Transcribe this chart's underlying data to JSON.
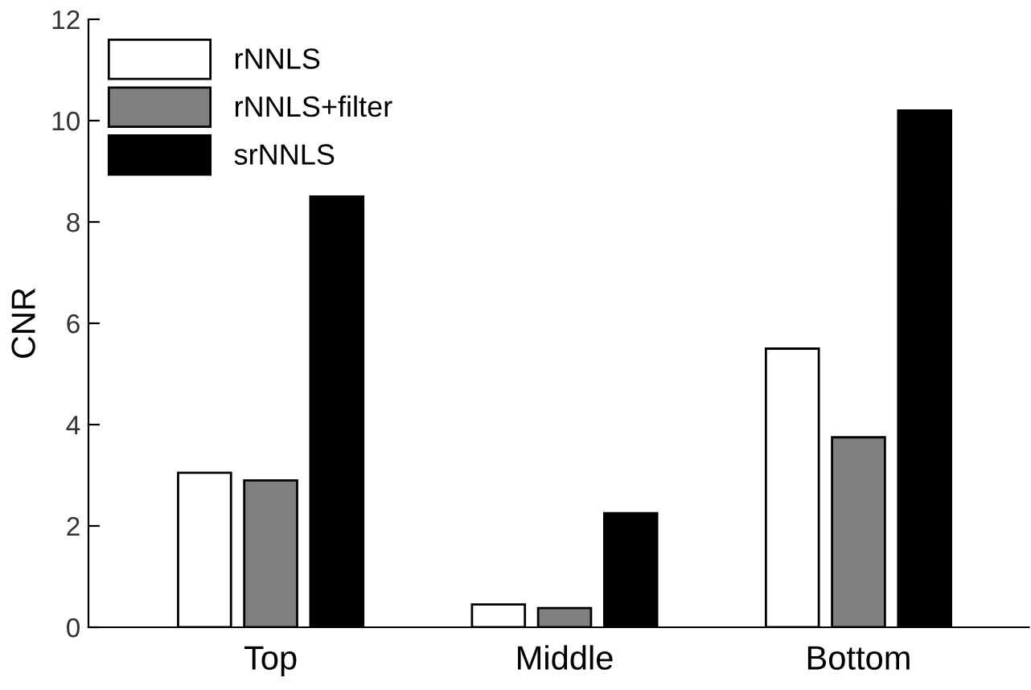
{
  "chart_data": {
    "type": "bar",
    "ylabel": "CNR",
    "categories": [
      "Top",
      "Middle",
      "Bottom"
    ],
    "series": [
      {
        "name": "rNNLS",
        "color": "#ffffff",
        "values": [
          3.05,
          0.45,
          5.5
        ]
      },
      {
        "name": "rNNLS+filter",
        "color": "#808080",
        "values": [
          2.9,
          0.38,
          3.75
        ]
      },
      {
        "name": "srNNLS",
        "color": "#000000",
        "values": [
          8.5,
          2.25,
          10.2
        ]
      }
    ],
    "ylim": [
      0,
      12
    ],
    "yticks": [
      0,
      2,
      4,
      6,
      8,
      10,
      12
    ],
    "grid": false,
    "legend": "top left"
  }
}
